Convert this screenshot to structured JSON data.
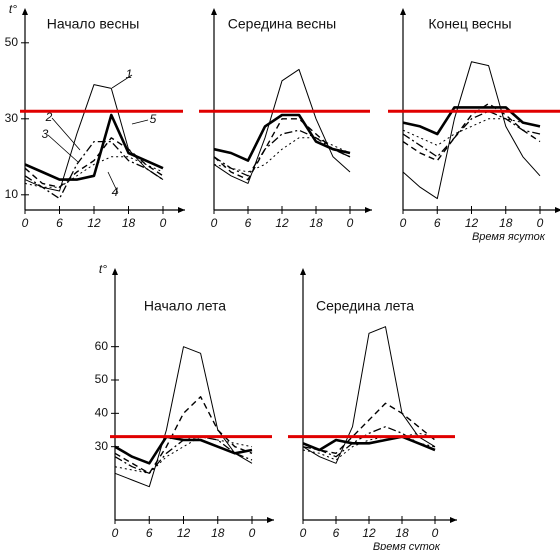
{
  "chart_data": [
    {
      "type": "line",
      "title": "Начало весны",
      "ylabel": "t°",
      "x": [
        0,
        3,
        6,
        9,
        12,
        15,
        18,
        21,
        24
      ],
      "xlim": [
        0,
        24
      ],
      "xticks": [
        0,
        6,
        12,
        18,
        {
          "value": 24,
          "label": "0"
        }
      ],
      "ylim": [
        6,
        56
      ],
      "yticks": [
        10,
        30,
        50
      ],
      "reference_line": {
        "value": 32,
        "color": "#e00000"
      },
      "series": [
        {
          "name": "1",
          "color": "#000000",
          "style": "thin",
          "values": [
            14,
            12,
            11,
            26,
            39,
            38,
            22,
            17,
            14
          ]
        },
        {
          "name": "2",
          "color": "#000000",
          "style": "dashed",
          "values": [
            17,
            13,
            12,
            16,
            19,
            25,
            22,
            18,
            15
          ]
        },
        {
          "name": "3",
          "color": "#000000",
          "style": "dashdot",
          "values": [
            15,
            12,
            9,
            18,
            24,
            24,
            19,
            17,
            14
          ]
        },
        {
          "name": "4",
          "color": "#000000",
          "style": "dotted",
          "values": [
            13,
            12,
            12,
            15,
            18,
            20,
            20,
            18,
            16
          ]
        },
        {
          "name": "5",
          "color": "#000000",
          "style": "bold",
          "values": [
            18,
            16,
            14,
            14,
            15,
            31,
            21,
            19,
            17
          ]
        }
      ]
    },
    {
      "type": "line",
      "title": "Середина весны",
      "x": [
        0,
        3,
        6,
        9,
        12,
        15,
        18,
        21,
        24
      ],
      "xlim": [
        0,
        24
      ],
      "xticks": [
        0,
        6,
        12,
        18,
        {
          "value": 24,
          "label": "0"
        }
      ],
      "ylim": [
        6,
        56
      ],
      "reference_line": {
        "value": 32,
        "color": "#e00000"
      },
      "series": [
        {
          "color": "#000000",
          "style": "thin",
          "values": [
            18,
            15,
            13,
            25,
            40,
            43,
            30,
            20,
            16
          ]
        },
        {
          "color": "#000000",
          "style": "dashed",
          "values": [
            20,
            16,
            14,
            22,
            30,
            30,
            26,
            22,
            20
          ]
        },
        {
          "color": "#000000",
          "style": "dashdot",
          "values": [
            20,
            17,
            15,
            22,
            26,
            27,
            25,
            22,
            20
          ]
        },
        {
          "color": "#000000",
          "style": "dotted",
          "values": [
            18,
            17,
            16,
            18,
            22,
            25,
            25,
            23,
            21
          ]
        },
        {
          "color": "#000000",
          "style": "bold",
          "values": [
            22,
            21,
            19,
            28,
            31,
            31,
            24,
            22,
            21
          ]
        }
      ]
    },
    {
      "type": "line",
      "title": "Конец весны",
      "xlabel": "Время ясуток",
      "x": [
        0,
        3,
        6,
        9,
        12,
        15,
        18,
        21,
        24
      ],
      "xlim": [
        0,
        24
      ],
      "xticks": [
        0,
        6,
        12,
        18,
        {
          "value": 24,
          "label": "0"
        }
      ],
      "ylim": [
        6,
        56
      ],
      "reference_line": {
        "value": 32,
        "color": "#e00000"
      },
      "series": [
        {
          "color": "#000000",
          "style": "thin",
          "values": [
            16,
            12,
            9,
            30,
            45,
            44,
            28,
            20,
            15
          ]
        },
        {
          "color": "#000000",
          "style": "dashed",
          "values": [
            24,
            21,
            19,
            25,
            31,
            34,
            31,
            27,
            24
          ]
        },
        {
          "color": "#000000",
          "style": "dashdot",
          "values": [
            26,
            23,
            20,
            25,
            30,
            32,
            30,
            27,
            26
          ]
        },
        {
          "color": "#000000",
          "style": "dotted",
          "values": [
            27,
            25,
            23,
            26,
            28,
            30,
            30,
            29,
            28
          ]
        },
        {
          "color": "#000000",
          "style": "bold",
          "values": [
            29,
            28,
            26,
            33,
            33,
            33,
            33,
            29,
            28
          ]
        }
      ]
    },
    {
      "type": "line",
      "title": "Начало лета",
      "ylabel": "t°",
      "x": [
        0,
        3,
        6,
        9,
        12,
        15,
        18,
        21,
        24
      ],
      "xlim": [
        0,
        24
      ],
      "xticks": [
        0,
        6,
        12,
        18,
        {
          "value": 24,
          "label": "0"
        }
      ],
      "ylim": [
        8,
        80
      ],
      "yticks": [
        30,
        40,
        50,
        60
      ],
      "reference_line": {
        "value": 33,
        "color": "#e00000"
      },
      "series": [
        {
          "color": "#000000",
          "style": "thin",
          "values": [
            22,
            20,
            18,
            35,
            60,
            58,
            35,
            28,
            25
          ]
        },
        {
          "color": "#000000",
          "style": "dashed",
          "values": [
            28,
            25,
            22,
            30,
            40,
            45,
            35,
            30,
            28
          ]
        },
        {
          "color": "#000000",
          "style": "dashdot",
          "values": [
            27,
            24,
            22,
            28,
            32,
            33,
            32,
            28,
            26
          ]
        },
        {
          "color": "#000000",
          "style": "dotted",
          "values": [
            24,
            23,
            22,
            27,
            30,
            33,
            32,
            31,
            30
          ]
        },
        {
          "color": "#000000",
          "style": "bold",
          "values": [
            30,
            27,
            25,
            33,
            32,
            32,
            30,
            28,
            29
          ]
        }
      ]
    },
    {
      "type": "line",
      "title": "Середина лета",
      "xlabel": "Время суток",
      "x": [
        0,
        3,
        6,
        9,
        12,
        15,
        18,
        21,
        24
      ],
      "xlim": [
        0,
        24
      ],
      "xticks": [
        0,
        6,
        12,
        18,
        {
          "value": 24,
          "label": "0"
        }
      ],
      "ylim": [
        8,
        80
      ],
      "reference_line": {
        "value": 33,
        "color": "#e00000"
      },
      "series": [
        {
          "color": "#000000",
          "style": "thin",
          "values": [
            30,
            27,
            25,
            36,
            64,
            66,
            40,
            33,
            30
          ]
        },
        {
          "color": "#000000",
          "style": "dashed",
          "values": [
            31,
            29,
            28,
            33,
            38,
            43,
            40,
            36,
            32
          ]
        },
        {
          "color": "#000000",
          "style": "dashdot",
          "values": [
            30,
            29,
            27,
            31,
            34,
            36,
            34,
            31,
            30
          ]
        },
        {
          "color": "#000000",
          "style": "dotted",
          "values": [
            29,
            28,
            26,
            30,
            32,
            33,
            33,
            34,
            33
          ]
        },
        {
          "color": "#000000",
          "style": "bold",
          "values": [
            31,
            29,
            32,
            31,
            31,
            32,
            33,
            31,
            29
          ]
        }
      ]
    }
  ]
}
